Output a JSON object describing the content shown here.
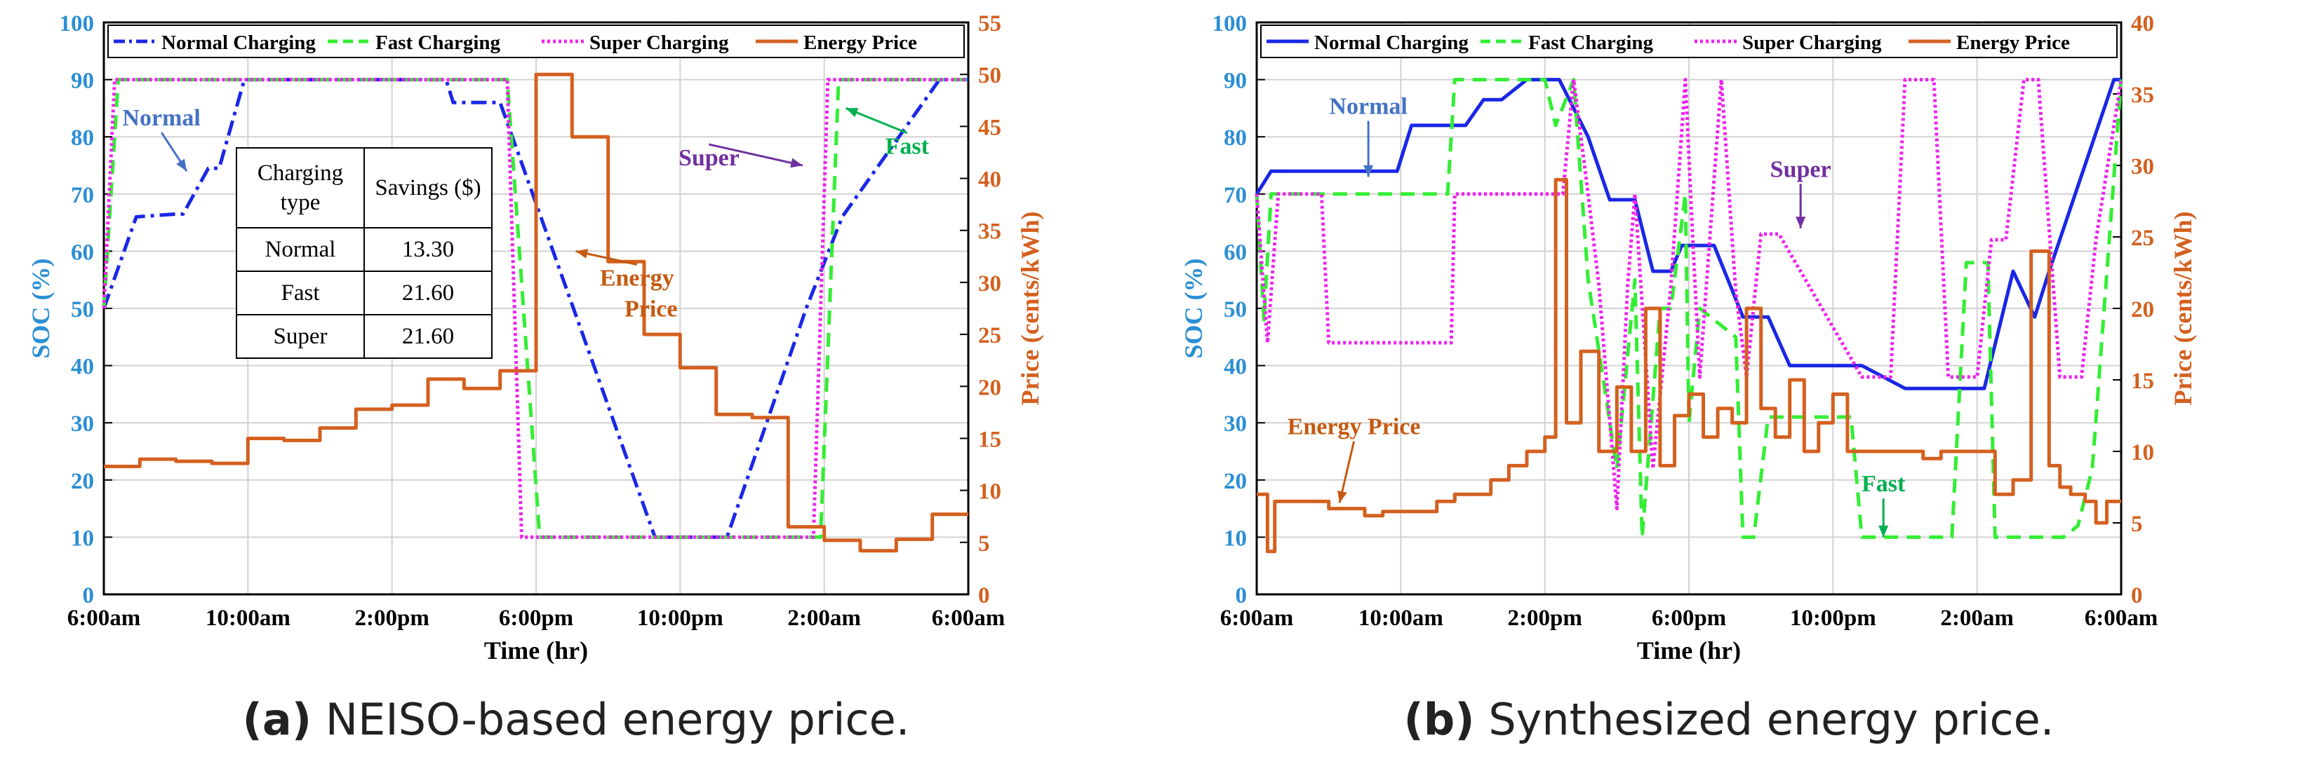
{
  "colors": {
    "normal": "#1a27e6",
    "fast": "#33ee33",
    "super": "#ee22ee",
    "price": "#d4601f",
    "soc_axis": "#2b8fd3",
    "price_axis": "#d4601f",
    "grid": "#d2d2d2"
  },
  "table": {
    "header": [
      "Charging type",
      "Savings ($)"
    ],
    "rows": [
      {
        "type": "Normal",
        "savings": "13.30"
      },
      {
        "type": "Fast",
        "savings": "21.60"
      },
      {
        "type": "Super",
        "savings": "21.60"
      }
    ]
  },
  "chart_data": [
    {
      "id": "a",
      "type": "line",
      "caption_prefix": "(a)",
      "caption_text": "NEISO-based energy price.",
      "xlabel": "Time (hr)",
      "ylabel": "SOC (%)",
      "y2label": "Price (cents/kWh)",
      "x_ticks": [
        "6:00am",
        "10:00am",
        "2:00pm",
        "6:00pm",
        "10:00pm",
        "2:00am",
        "6:00am"
      ],
      "xlim": [
        0,
        24
      ],
      "ylim": [
        0,
        100
      ],
      "y_ticks": [
        0,
        10,
        20,
        30,
        40,
        50,
        60,
        70,
        80,
        90,
        100
      ],
      "y2lim": [
        0,
        55
      ],
      "y2_ticks": [
        0,
        5,
        10,
        15,
        20,
        25,
        30,
        35,
        40,
        45,
        50,
        55
      ],
      "legend": [
        "Normal Charging",
        "Fast Charging",
        "Super Charging",
        "Energy Price"
      ],
      "series": [
        {
          "name": "Normal Charging",
          "axis": "left",
          "style": "dashdot",
          "x": [
            0,
            0.9,
            2,
            2.2,
            2.9,
            3.2,
            3.9,
            9.5,
            9.7,
            11,
            15.3,
            16.6,
            17.3,
            19.5,
            20.5,
            23.2,
            24
          ],
          "y": [
            50,
            66,
            66.5,
            66.5,
            74.5,
            74.5,
            90,
            90,
            86,
            86,
            10,
            10,
            10,
            50,
            66,
            90,
            90
          ]
        },
        {
          "name": "Fast Charging",
          "axis": "left",
          "style": "dashed",
          "x": [
            0,
            0.4,
            11.2,
            12.1,
            19.9,
            20.4,
            24
          ],
          "y": [
            50,
            90,
            90,
            10,
            10,
            90,
            90
          ]
        },
        {
          "name": "Super Charging",
          "axis": "left",
          "style": "dotted",
          "x": [
            0,
            0.3,
            11.2,
            11.6,
            19.7,
            20.1,
            24
          ],
          "y": [
            50,
            90,
            90,
            10,
            10,
            90,
            90
          ]
        },
        {
          "name": "Energy Price",
          "axis": "right",
          "style": "step",
          "x": [
            0,
            1,
            2,
            3,
            4,
            5,
            6,
            7,
            8,
            9,
            10,
            11,
            12,
            13,
            14,
            15,
            16,
            17,
            18,
            19,
            20,
            21,
            22,
            23
          ],
          "y": [
            12.3,
            13,
            12.8,
            12.6,
            15,
            14.8,
            16,
            17.8,
            18.2,
            20.7,
            19.8,
            21.5,
            50,
            44,
            32,
            25,
            21.8,
            17.3,
            17,
            6.5,
            5.2,
            4.2,
            5.3,
            7.7
          ]
        }
      ],
      "annotations": [
        {
          "text": "Normal",
          "color": "#4472c4",
          "x": 1.6,
          "y": 82,
          "ax": 2.3,
          "ay": 74
        },
        {
          "text": "Super",
          "color": "#7030a0",
          "x": 16.8,
          "y": 75,
          "ax": 19.4,
          "ay": 75
        },
        {
          "text": "Fast",
          "color": "#00b050",
          "x": 22.3,
          "y": 77,
          "ax": 20.6,
          "ay": 85
        },
        {
          "text": "Energy",
          "text2": "Price",
          "color": "#c55a11",
          "x": 14.8,
          "y": 54,
          "ax": 13.1,
          "ay": 60
        }
      ]
    },
    {
      "id": "b",
      "type": "line",
      "caption_prefix": "(b)",
      "caption_text": "Synthesized energy price.",
      "xlabel": "Time (hr)",
      "ylabel": "SOC (%)",
      "y2label": "Price (cents/kWh)",
      "x_ticks": [
        "6:00am",
        "10:00am",
        "2:00pm",
        "6:00pm",
        "10:00pm",
        "2:00am",
        "6:00am"
      ],
      "xlim": [
        0,
        24
      ],
      "ylim": [
        0,
        100
      ],
      "y_ticks": [
        0,
        10,
        20,
        30,
        40,
        50,
        60,
        70,
        80,
        90,
        100
      ],
      "y2lim": [
        0,
        40
      ],
      "y2_ticks": [
        0,
        5,
        10,
        15,
        20,
        25,
        30,
        35,
        40
      ],
      "legend": [
        "Normal Charging",
        "Fast Charging",
        "Super Charging",
        "Energy Price"
      ],
      "series": [
        {
          "name": "Normal Charging",
          "axis": "left",
          "style": "solid",
          "x": [
            0,
            0.4,
            3.9,
            4.3,
            5.8,
            6.3,
            6.8,
            7.5,
            8.4,
            9.2,
            9.8,
            10.5,
            11,
            11.5,
            11.8,
            12.7,
            13.5,
            14.2,
            14.8,
            15.5,
            16.2,
            16.8,
            18,
            18.3,
            20,
            20.2,
            21,
            21.6,
            22,
            23.8,
            24
          ],
          "y": [
            70,
            74,
            74,
            82,
            82,
            86.5,
            86.5,
            90,
            90,
            80,
            69,
            69,
            56.5,
            56.5,
            61,
            61,
            48.5,
            48.5,
            40,
            40,
            40,
            40,
            36,
            36,
            36,
            36,
            56.5,
            48.5,
            56.5,
            90,
            90
          ]
        },
        {
          "name": "Fast Charging",
          "axis": "left",
          "style": "dashed",
          "x": [
            0,
            0.2,
            0.4,
            5.3,
            5.5,
            8,
            8.3,
            8.8,
            9.2,
            10,
            10.5,
            10.7,
            11.2,
            11.5,
            11.9,
            12,
            12.3,
            13.3,
            13.5,
            13.8,
            14.2,
            16.5,
            16.8,
            17.2,
            19.3,
            19.7,
            20.3,
            20.5,
            21,
            21.4,
            21.5,
            22.4,
            22.8,
            23.2,
            24
          ],
          "y": [
            70,
            48,
            70,
            70,
            90,
            90,
            82,
            90,
            55,
            22,
            55,
            10,
            50,
            50,
            70,
            30,
            50,
            45,
            10,
            10,
            31,
            31,
            10,
            10,
            10,
            58,
            58,
            10,
            10,
            10,
            10,
            10,
            12,
            22,
            90
          ]
        },
        {
          "name": "Super Charging",
          "axis": "left",
          "style": "dotted",
          "x": [
            0,
            0.3,
            0.6,
            1.8,
            2,
            5.4,
            5.5,
            8.5,
            8.8,
            9.2,
            9.5,
            10,
            10.3,
            10.5,
            11,
            11.5,
            11.9,
            12.1,
            12.3,
            12.9,
            13.3,
            13.6,
            14,
            14.5,
            16.8,
            17.1,
            17.6,
            18,
            18.8,
            19.2,
            19.7,
            20,
            20.4,
            20.8,
            21.3,
            21.7,
            22.3,
            22.9,
            23.3,
            24
          ],
          "y": [
            70,
            44,
            70,
            70,
            44,
            44,
            70,
            70,
            90,
            70,
            54,
            15,
            54,
            70,
            22,
            54,
            90,
            63,
            38,
            90,
            53,
            38,
            63,
            63,
            38,
            38,
            38,
            90,
            90,
            38,
            38,
            38,
            62,
            62,
            90,
            90,
            38,
            38,
            62,
            90
          ]
        },
        {
          "name": "Energy Price",
          "axis": "right",
          "style": "step",
          "x": [
            0,
            0.3,
            0.5,
            2,
            3,
            3.5,
            5,
            5.5,
            6.5,
            7,
            7.5,
            8,
            8.3,
            8.6,
            9,
            9.5,
            10,
            10.4,
            10.8,
            11.2,
            11.6,
            12,
            12.4,
            12.8,
            13.2,
            13.6,
            14,
            14.4,
            14.8,
            15.2,
            15.6,
            16,
            16.4,
            16.8,
            17.2,
            17.6,
            18,
            18.5,
            19,
            19.5,
            20,
            20.5,
            21,
            21.5,
            22,
            22.3,
            22.6,
            23,
            23.3,
            23.6
          ],
          "y": [
            7,
            3,
            6.5,
            6,
            5.5,
            5.8,
            6.5,
            7,
            8,
            9,
            10,
            11,
            29,
            12,
            17,
            10,
            14.5,
            10,
            20,
            9,
            12.5,
            14,
            11,
            13,
            12,
            20,
            13,
            11,
            15,
            10,
            12,
            14,
            10,
            10,
            10,
            10,
            10,
            9.5,
            10,
            10,
            10,
            7,
            8,
            24,
            9,
            7.5,
            7,
            6.5,
            5,
            6.5
          ]
        }
      ],
      "annotations": [
        {
          "text": "Normal",
          "color": "#4472c4",
          "x": 3.1,
          "y": 84,
          "ax": 3.1,
          "ay": 73
        },
        {
          "text": "Super",
          "color": "#7030a0",
          "x": 15.1,
          "y": 73,
          "ax": 15.1,
          "ay": 64
        },
        {
          "text": "Fast",
          "color": "#00b050",
          "x": 17.4,
          "y": 18,
          "ax": 17.4,
          "ay": 10
        },
        {
          "text": "Energy Price",
          "color": "#c55a11",
          "x": 2.7,
          "y": 28,
          "ax": 2.3,
          "ay": 16
        }
      ]
    }
  ]
}
